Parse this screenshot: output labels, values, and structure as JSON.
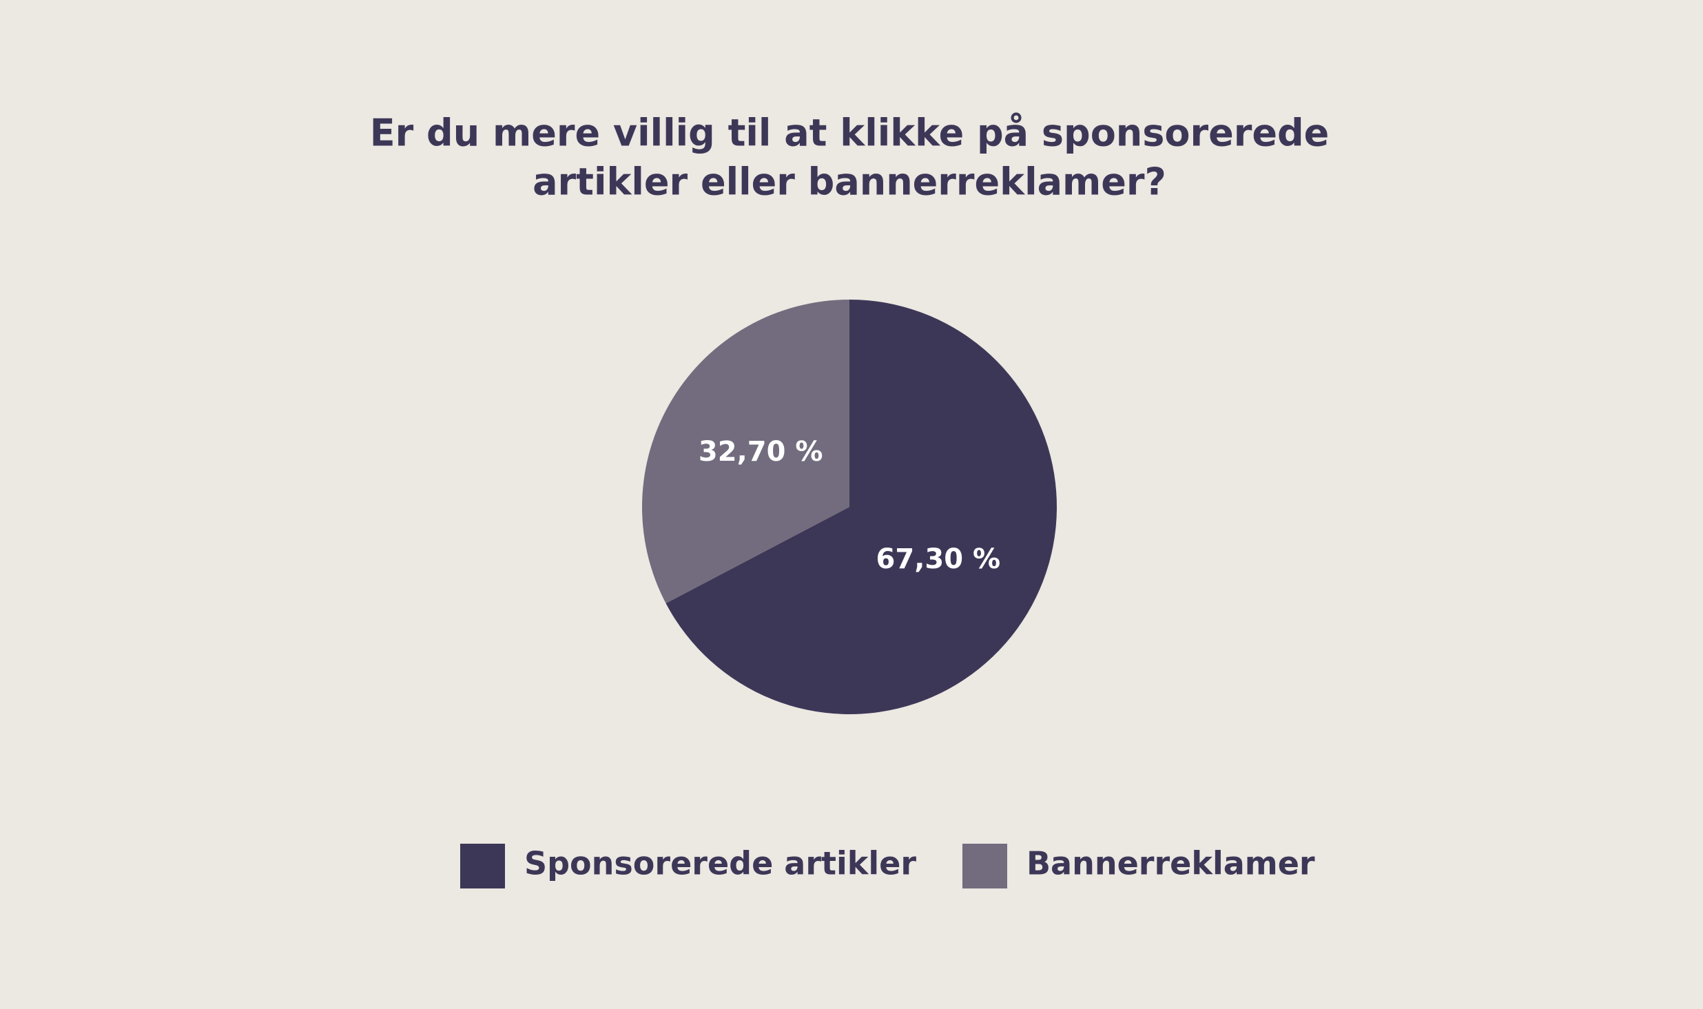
{
  "chart_data": {
    "type": "pie",
    "title": [
      "Er du mere villig til at klikke på sponsorerede",
      "artikler eller bannerreklamer?"
    ],
    "categories": [
      "Sponsorerede artikler",
      "Bannerreklamer"
    ],
    "values": [
      67.3,
      32.7
    ],
    "value_labels": [
      "67,30 %",
      "32,70 %"
    ],
    "colors": [
      "#3d3757",
      "#726c7e"
    ]
  }
}
